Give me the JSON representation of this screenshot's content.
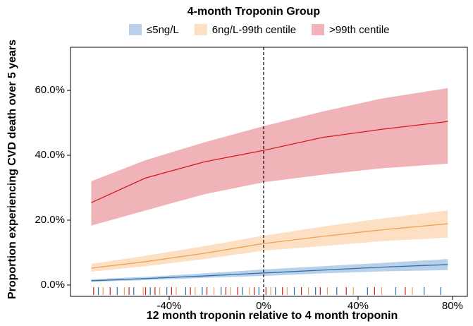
{
  "chart_data": {
    "type": "line",
    "legend_title": "4-month Troponin Group",
    "legend_position": "top",
    "x_label": "12 month troponin relative to 4 month troponin",
    "y_label": "Proportion experiencing CVD death over 5 years",
    "xlim": [
      -81.8,
      86.3
    ],
    "ylim": [
      -3.5,
      73.3
    ],
    "xticks": [
      {
        "value": -40,
        "label": "-40%"
      },
      {
        "value": 0,
        "label": "0%"
      },
      {
        "value": 40,
        "label": "40%"
      },
      {
        "value": 80,
        "label": "80%"
      }
    ],
    "yticks": [
      {
        "value": 0,
        "label": "0.0%"
      },
      {
        "value": 20,
        "label": "20.0%"
      },
      {
        "value": 40,
        "label": "40.0%"
      },
      {
        "value": 60,
        "label": "60.0%"
      }
    ],
    "vline": 0,
    "x": [
      -73,
      -50,
      -25,
      0,
      25,
      50,
      78
    ],
    "series": [
      {
        "name": "≤5ng/L",
        "color": "#2f6fb0",
        "band_color": "#b8d0e8",
        "values": [
          1.3,
          2.0,
          2.8,
          3.7,
          4.6,
          5.5,
          6.3
        ],
        "lower": [
          1.0,
          1.5,
          2.2,
          2.8,
          3.6,
          4.2,
          4.6
        ],
        "upper": [
          1.8,
          2.5,
          3.6,
          4.8,
          5.8,
          6.8,
          8.0
        ],
        "rug": [
          -70,
          -62,
          -55,
          -48,
          -41,
          -33,
          -26,
          -18,
          -9,
          -2,
          5,
          13,
          22,
          31,
          44,
          56,
          68,
          75
        ]
      },
      {
        "name": "6ng/L-99th centile",
        "color": "#f0a050",
        "band_color": "#fde0c4",
        "values": [
          5.2,
          7.2,
          9.8,
          12.8,
          15.0,
          17.0,
          18.9
        ],
        "lower": [
          4.1,
          5.8,
          8.0,
          10.6,
          12.0,
          13.5,
          14.6
        ],
        "upper": [
          6.5,
          9.0,
          12.0,
          15.2,
          18.0,
          20.5,
          23.0
        ],
        "rug": [
          -68,
          -59,
          -51,
          -44,
          -37,
          -29,
          -21,
          -14,
          -6,
          3,
          10,
          19,
          27,
          38,
          50,
          63
        ]
      },
      {
        "name": ">99th centile",
        "color": "#d7191c",
        "band_color": "#f0b3b8",
        "values": [
          25.4,
          33.0,
          38.0,
          41.5,
          45.5,
          48.0,
          50.4
        ],
        "lower": [
          18.3,
          23.0,
          28.0,
          31.7,
          34.0,
          36.0,
          37.4
        ],
        "upper": [
          32.0,
          38.5,
          44.0,
          49.0,
          53.5,
          57.5,
          60.7
        ],
        "rug": [
          -72,
          -65,
          -57,
          -50,
          -46,
          -39,
          -31,
          -24,
          -16,
          -11,
          -4,
          1,
          8,
          16,
          24,
          35,
          47,
          60
        ]
      }
    ]
  }
}
